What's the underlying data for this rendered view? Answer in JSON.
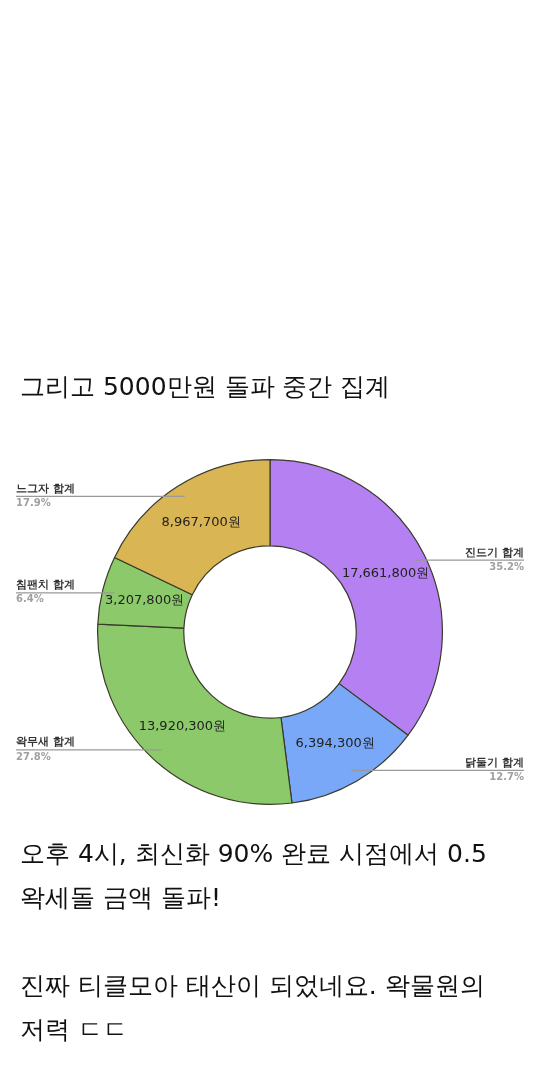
{
  "chart_data": {
    "type": "donut",
    "title": "그리고 5000만원 돌파 중간 집계",
    "categories": [
      "진드기 합계",
      "닭둘기 합계",
      "왁무새 합계",
      "침팬치 합계",
      "느그자 합계"
    ],
    "values": [
      17661800,
      6394300,
      13920300,
      3207800,
      8967700
    ],
    "colors": [
      "#b580f2",
      "#78a8f7",
      "#8cc96b",
      "#8cc96b",
      "#d9b554"
    ],
    "value_labels": [
      "17,661,800원",
      "6,394,300원",
      "13,920,300원",
      "3,207,800원",
      "8,967,700원"
    ],
    "legend": false,
    "annotations": [
      {
        "text": "35.2%",
        "x": "진드기 합계"
      },
      {
        "text": "12.7%",
        "x": "닭둘기 합계"
      },
      {
        "text": "27.8%",
        "x": "왁무새 합계"
      },
      {
        "text": "6.4%",
        "x": "침팬치 합계"
      },
      {
        "text": "17.9%",
        "x": "느그자 합계"
      },
      "오후 4시, 최신화 90% 완료 시점에서 0.5 왁세돌 금액 돌파!",
      "진짜 티클모아 태산이 되었네요. 왁물원의 저력 ㄷㄷ"
    ]
  }
}
